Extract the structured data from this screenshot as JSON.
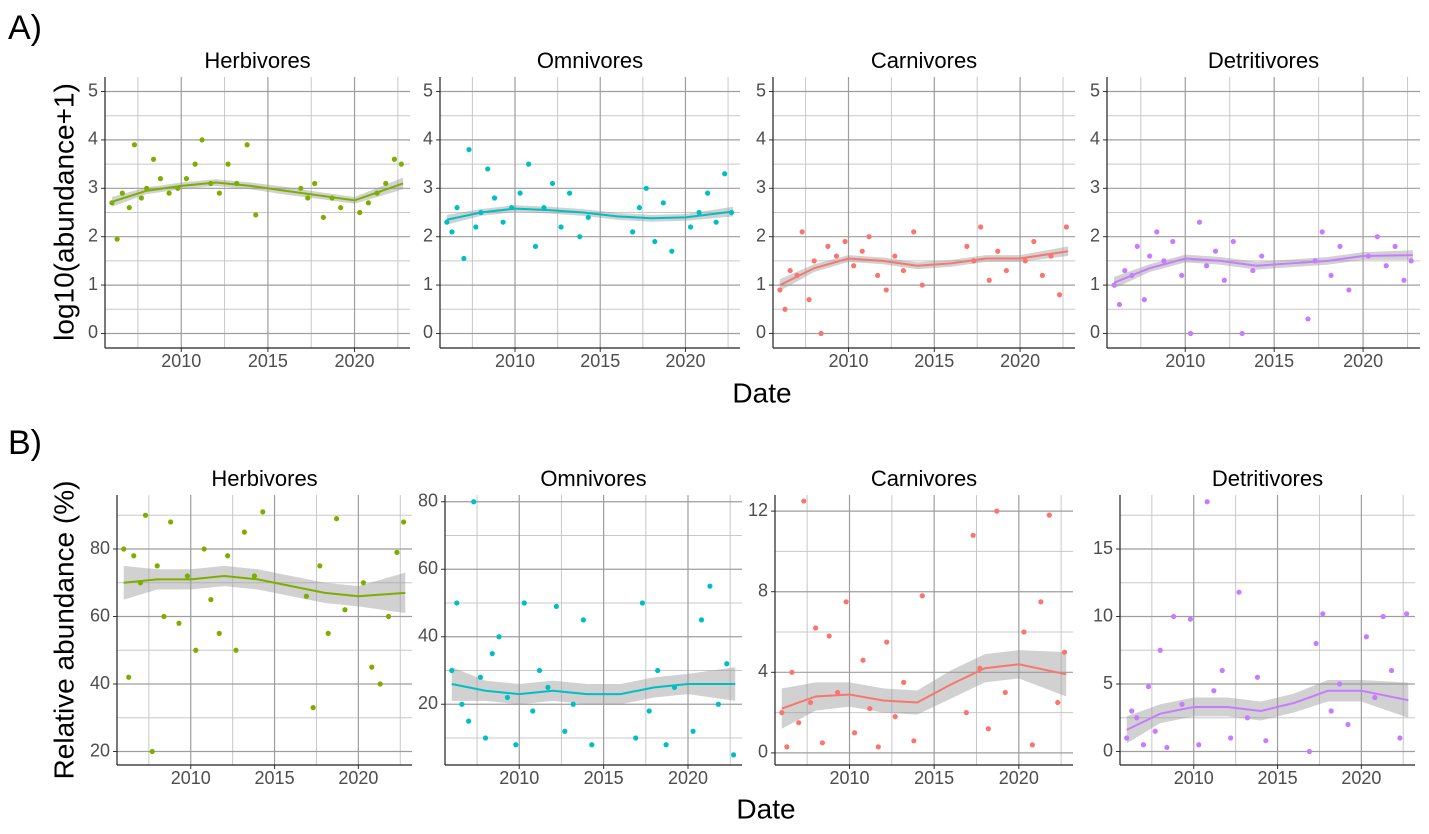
{
  "figure": {
    "panel_labels": [
      "A)",
      "B)"
    ],
    "y_labels": [
      "log10(abundance+1)",
      "Relative abundance (%)"
    ],
    "x_labels": [
      "Date",
      "Date"
    ]
  },
  "chart_data": [
    {
      "type": "scatter",
      "title": "Herbivores",
      "color": "#7cae00",
      "grid": true,
      "x": [
        2006.0,
        2006.3,
        2006.6,
        2007.0,
        2007.3,
        2007.7,
        2008.0,
        2008.4,
        2008.8,
        2009.3,
        2009.8,
        2010.3,
        2010.8,
        2011.2,
        2011.7,
        2012.2,
        2012.7,
        2013.2,
        2013.8,
        2014.3,
        2016.9,
        2017.3,
        2017.7,
        2018.2,
        2018.7,
        2019.2,
        2020.3,
        2020.8,
        2021.3,
        2021.8,
        2022.3,
        2022.7
      ],
      "values": [
        2.7,
        1.95,
        2.9,
        2.6,
        3.9,
        2.8,
        3.0,
        3.6,
        3.2,
        2.9,
        3.0,
        3.2,
        3.5,
        4.0,
        3.1,
        2.9,
        3.5,
        3.1,
        3.9,
        2.45,
        3.0,
        2.8,
        3.1,
        2.4,
        2.8,
        2.6,
        2.5,
        2.7,
        2.9,
        3.1,
        3.6,
        3.5
      ],
      "trend": {
        "x": [
          2006,
          2008,
          2010,
          2012,
          2014,
          2016,
          2018,
          2020,
          2022.8
        ],
        "values": [
          2.72,
          2.95,
          3.05,
          3.12,
          3.05,
          2.95,
          2.85,
          2.75,
          3.1
        ],
        "lower": [
          2.62,
          2.88,
          2.98,
          3.05,
          2.98,
          2.87,
          2.78,
          2.68,
          2.98
        ],
        "upper": [
          2.82,
          3.02,
          3.12,
          3.19,
          3.12,
          3.03,
          2.92,
          2.82,
          3.22
        ]
      },
      "xlim": [
        2005.6,
        2023.2
      ],
      "xticks": [
        2010,
        2015,
        2020
      ],
      "ylim": [
        -0.3,
        5.3
      ],
      "yticks": [
        0,
        1,
        2,
        3,
        4,
        5
      ]
    },
    {
      "type": "scatter",
      "title": "Omnivores",
      "color": "#00bfc4",
      "grid": true,
      "x": [
        2006.0,
        2006.3,
        2006.6,
        2007.0,
        2007.3,
        2007.7,
        2008.0,
        2008.4,
        2008.8,
        2009.3,
        2009.8,
        2010.3,
        2010.8,
        2011.2,
        2011.7,
        2012.2,
        2012.7,
        2013.2,
        2013.8,
        2014.3,
        2016.9,
        2017.3,
        2017.7,
        2018.2,
        2018.7,
        2019.2,
        2020.3,
        2020.8,
        2021.3,
        2021.8,
        2022.3,
        2022.7
      ],
      "values": [
        2.3,
        2.1,
        2.6,
        1.55,
        3.8,
        2.2,
        2.5,
        3.4,
        2.8,
        2.3,
        2.6,
        2.9,
        3.5,
        1.8,
        2.6,
        3.1,
        2.2,
        2.9,
        2.0,
        2.4,
        2.1,
        2.6,
        3.0,
        1.9,
        2.7,
        1.7,
        2.2,
        2.5,
        2.9,
        2.3,
        3.3,
        2.5
      ],
      "trend": {
        "x": [
          2006,
          2008,
          2010,
          2012,
          2014,
          2016,
          2018,
          2020,
          2022.8
        ],
        "values": [
          2.35,
          2.5,
          2.58,
          2.55,
          2.5,
          2.42,
          2.38,
          2.4,
          2.52
        ],
        "lower": [
          2.25,
          2.43,
          2.51,
          2.48,
          2.43,
          2.35,
          2.31,
          2.33,
          2.42
        ],
        "upper": [
          2.45,
          2.57,
          2.65,
          2.62,
          2.57,
          2.49,
          2.45,
          2.47,
          2.62
        ]
      },
      "xlim": [
        2005.6,
        2023.2
      ],
      "xticks": [
        2010,
        2015,
        2020
      ],
      "ylim": [
        -0.3,
        5.3
      ],
      "yticks": [
        0,
        1,
        2,
        3,
        4,
        5
      ]
    },
    {
      "type": "scatter",
      "title": "Carnivores",
      "color": "#f8766d",
      "grid": true,
      "x": [
        2006.0,
        2006.3,
        2006.6,
        2007.0,
        2007.3,
        2007.7,
        2008.0,
        2008.4,
        2008.8,
        2009.3,
        2009.8,
        2010.3,
        2010.8,
        2011.2,
        2011.7,
        2012.2,
        2012.7,
        2013.2,
        2013.8,
        2014.3,
        2016.9,
        2017.3,
        2017.7,
        2018.2,
        2018.7,
        2019.2,
        2020.3,
        2020.8,
        2021.3,
        2021.8,
        2022.3,
        2022.7
      ],
      "values": [
        0.9,
        0.5,
        1.3,
        1.2,
        2.1,
        0.7,
        1.5,
        0.0,
        1.8,
        1.6,
        1.9,
        1.4,
        1.7,
        2.0,
        1.2,
        0.9,
        1.6,
        1.3,
        2.1,
        1.0,
        1.8,
        1.5,
        2.2,
        1.1,
        1.7,
        1.3,
        1.5,
        1.9,
        1.2,
        1.6,
        0.8,
        2.2
      ],
      "trend": {
        "x": [
          2006,
          2008,
          2010,
          2012,
          2014,
          2016,
          2018,
          2020,
          2022.8
        ],
        "values": [
          1.0,
          1.35,
          1.55,
          1.5,
          1.4,
          1.45,
          1.55,
          1.55,
          1.7
        ],
        "lower": [
          0.88,
          1.27,
          1.48,
          1.43,
          1.33,
          1.38,
          1.48,
          1.48,
          1.6
        ],
        "upper": [
          1.12,
          1.43,
          1.62,
          1.57,
          1.47,
          1.52,
          1.62,
          1.62,
          1.8
        ]
      },
      "xlim": [
        2005.6,
        2023.2
      ],
      "xticks": [
        2010,
        2015,
        2020
      ],
      "ylim": [
        -0.3,
        5.3
      ],
      "yticks": [
        0,
        1,
        2,
        3,
        4,
        5
      ]
    },
    {
      "type": "scatter",
      "title": "Detritivores",
      "color": "#c77cff",
      "grid": true,
      "x": [
        2006.0,
        2006.3,
        2006.6,
        2007.0,
        2007.3,
        2007.7,
        2008.0,
        2008.4,
        2008.8,
        2009.3,
        2009.8,
        2010.3,
        2010.8,
        2011.2,
        2011.7,
        2012.2,
        2012.7,
        2013.2,
        2013.8,
        2014.3,
        2016.9,
        2017.3,
        2017.7,
        2018.2,
        2018.7,
        2019.2,
        2020.3,
        2020.8,
        2021.3,
        2021.8,
        2022.3,
        2022.7
      ],
      "values": [
        1.0,
        0.6,
        1.3,
        1.2,
        1.8,
        0.7,
        1.6,
        2.1,
        1.5,
        1.9,
        1.2,
        0.0,
        2.3,
        1.4,
        1.7,
        1.1,
        1.9,
        0.0,
        1.3,
        1.6,
        0.3,
        1.5,
        2.1,
        1.2,
        1.8,
        0.9,
        1.6,
        2.0,
        1.4,
        1.8,
        1.1,
        1.5
      ],
      "trend": {
        "x": [
          2006,
          2008,
          2010,
          2012,
          2014,
          2016,
          2018,
          2020,
          2022.8
        ],
        "values": [
          1.05,
          1.35,
          1.55,
          1.5,
          1.4,
          1.45,
          1.5,
          1.6,
          1.62
        ],
        "lower": [
          0.93,
          1.27,
          1.47,
          1.42,
          1.32,
          1.37,
          1.42,
          1.52,
          1.52
        ],
        "upper": [
          1.17,
          1.43,
          1.63,
          1.58,
          1.48,
          1.53,
          1.58,
          1.68,
          1.72
        ]
      },
      "xlim": [
        2005.6,
        2023.2
      ],
      "xticks": [
        2010,
        2015,
        2020
      ],
      "ylim": [
        -0.3,
        5.3
      ],
      "yticks": [
        0,
        1,
        2,
        3,
        4,
        5
      ]
    },
    {
      "type": "scatter",
      "title": "Herbivores",
      "color": "#7cae00",
      "grid": true,
      "x": [
        2006.0,
        2006.3,
        2006.6,
        2007.0,
        2007.3,
        2007.7,
        2008.0,
        2008.4,
        2008.8,
        2009.3,
        2009.8,
        2010.3,
        2010.8,
        2011.2,
        2011.7,
        2012.2,
        2012.7,
        2013.2,
        2013.8,
        2014.3,
        2016.9,
        2017.3,
        2017.7,
        2018.2,
        2018.7,
        2019.2,
        2020.3,
        2020.8,
        2021.3,
        2021.8,
        2022.3,
        2022.7
      ],
      "values": [
        80,
        42,
        78,
        70,
        90,
        20,
        75,
        60,
        88,
        58,
        72,
        50,
        80,
        65,
        55,
        78,
        50,
        85,
        72,
        91,
        66,
        33,
        75,
        55,
        89,
        62,
        70,
        45,
        40,
        60,
        79,
        88
      ],
      "trend": {
        "x": [
          2006,
          2008,
          2010,
          2012,
          2014,
          2016,
          2018,
          2020,
          2022.8
        ],
        "values": [
          70,
          71,
          71,
          72,
          71,
          69,
          67,
          66,
          67
        ],
        "lower": [
          65,
          68,
          68,
          69,
          68,
          66,
          64,
          63,
          61
        ],
        "upper": [
          75,
          74,
          74,
          75,
          74,
          72,
          70,
          69,
          73
        ]
      },
      "xlim": [
        2005.6,
        2023.2
      ],
      "xticks": [
        2010,
        2015,
        2020
      ],
      "ylim": [
        16,
        96
      ],
      "yticks": [
        20,
        40,
        60,
        80
      ]
    },
    {
      "type": "scatter",
      "title": "Omnivores",
      "color": "#00bfc4",
      "grid": true,
      "x": [
        2006.0,
        2006.3,
        2006.6,
        2007.0,
        2007.3,
        2007.7,
        2008.0,
        2008.4,
        2008.8,
        2009.3,
        2009.8,
        2010.3,
        2010.8,
        2011.2,
        2011.7,
        2012.2,
        2012.7,
        2013.2,
        2013.8,
        2014.3,
        2016.9,
        2017.3,
        2017.7,
        2018.2,
        2018.7,
        2019.2,
        2020.3,
        2020.8,
        2021.3,
        2021.8,
        2022.3,
        2022.7
      ],
      "values": [
        30,
        50,
        20,
        15,
        80,
        28,
        10,
        35,
        40,
        22,
        8,
        50,
        18,
        30,
        25,
        49,
        12,
        20,
        45,
        8,
        10,
        50,
        18,
        30,
        8,
        25,
        12,
        45,
        55,
        20,
        32,
        5
      ],
      "trend": {
        "x": [
          2006,
          2008,
          2010,
          2012,
          2014,
          2016,
          2018,
          2020,
          2022.8
        ],
        "values": [
          26,
          24,
          23,
          24,
          23,
          23,
          25,
          26,
          26
        ],
        "lower": [
          21,
          21,
          20,
          21,
          20,
          20,
          22,
          23,
          21
        ],
        "upper": [
          31,
          27,
          26,
          27,
          26,
          26,
          28,
          29,
          31
        ]
      },
      "xlim": [
        2005.6,
        2023.2
      ],
      "xticks": [
        2010,
        2015,
        2020
      ],
      "ylim": [
        2,
        82
      ],
      "yticks": [
        20,
        40,
        60,
        80
      ]
    },
    {
      "type": "scatter",
      "title": "Carnivores",
      "color": "#f8766d",
      "grid": true,
      "x": [
        2006.0,
        2006.3,
        2006.6,
        2007.0,
        2007.3,
        2007.7,
        2008.0,
        2008.4,
        2008.8,
        2009.3,
        2009.8,
        2010.3,
        2010.8,
        2011.2,
        2011.7,
        2012.2,
        2012.7,
        2013.2,
        2013.8,
        2014.3,
        2016.9,
        2017.3,
        2017.7,
        2018.2,
        2018.7,
        2019.2,
        2020.3,
        2020.8,
        2021.3,
        2021.8,
        2022.3,
        2022.7
      ],
      "values": [
        2.0,
        0.3,
        4.0,
        1.5,
        12.5,
        2.5,
        6.2,
        0.5,
        5.8,
        3.0,
        7.5,
        1.0,
        4.6,
        2.2,
        0.3,
        5.5,
        1.8,
        3.5,
        0.6,
        7.8,
        2.0,
        10.8,
        4.2,
        1.2,
        12.0,
        3.0,
        6.0,
        0.4,
        7.5,
        11.8,
        2.5,
        5.0
      ],
      "trend": {
        "x": [
          2006,
          2008,
          2010,
          2012,
          2014,
          2016,
          2018,
          2020,
          2022.8
        ],
        "values": [
          2.2,
          2.8,
          2.9,
          2.6,
          2.5,
          3.4,
          4.2,
          4.4,
          3.9
        ],
        "lower": [
          1.2,
          2.1,
          2.3,
          2.0,
          1.9,
          2.7,
          3.5,
          3.7,
          2.8
        ],
        "upper": [
          3.2,
          3.5,
          3.5,
          3.2,
          3.1,
          4.1,
          4.9,
          5.1,
          5.0
        ]
      },
      "xlim": [
        2005.6,
        2023.2
      ],
      "xticks": [
        2010,
        2015,
        2020
      ],
      "ylim": [
        -0.6,
        12.8
      ],
      "yticks": [
        0,
        4,
        8,
        12
      ]
    },
    {
      "type": "scatter",
      "title": "Detritivores",
      "color": "#c77cff",
      "grid": true,
      "x": [
        2006.0,
        2006.3,
        2006.6,
        2007.0,
        2007.3,
        2007.7,
        2008.0,
        2008.4,
        2008.8,
        2009.3,
        2009.8,
        2010.3,
        2010.8,
        2011.2,
        2011.7,
        2012.2,
        2012.7,
        2013.2,
        2013.8,
        2014.3,
        2016.9,
        2017.3,
        2017.7,
        2018.2,
        2018.7,
        2019.2,
        2020.3,
        2020.8,
        2021.3,
        2021.8,
        2022.3,
        2022.7
      ],
      "values": [
        1.0,
        3.0,
        2.5,
        0.5,
        4.8,
        1.5,
        7.5,
        0.3,
        10.0,
        3.5,
        9.8,
        0.5,
        18.5,
        4.5,
        6.0,
        1.0,
        11.8,
        2.5,
        5.5,
        0.8,
        0.0,
        8.0,
        10.2,
        3.0,
        5.0,
        2.0,
        8.5,
        4.0,
        10.0,
        6.0,
        1.0,
        10.2
      ],
      "trend": {
        "x": [
          2006,
          2008,
          2010,
          2012,
          2014,
          2016,
          2018,
          2020,
          2022.8
        ],
        "values": [
          1.6,
          2.8,
          3.3,
          3.3,
          3.0,
          3.6,
          4.5,
          4.5,
          3.8
        ],
        "lower": [
          0.6,
          2.1,
          2.6,
          2.6,
          2.3,
          2.9,
          3.7,
          3.7,
          2.5
        ],
        "upper": [
          2.6,
          3.5,
          4.0,
          4.0,
          3.7,
          4.3,
          5.3,
          5.3,
          5.1
        ]
      },
      "xlim": [
        2005.6,
        2023.2
      ],
      "xticks": [
        2010,
        2015,
        2020
      ],
      "ylim": [
        -1,
        19
      ],
      "yticks": [
        0,
        5,
        10,
        15
      ]
    }
  ]
}
